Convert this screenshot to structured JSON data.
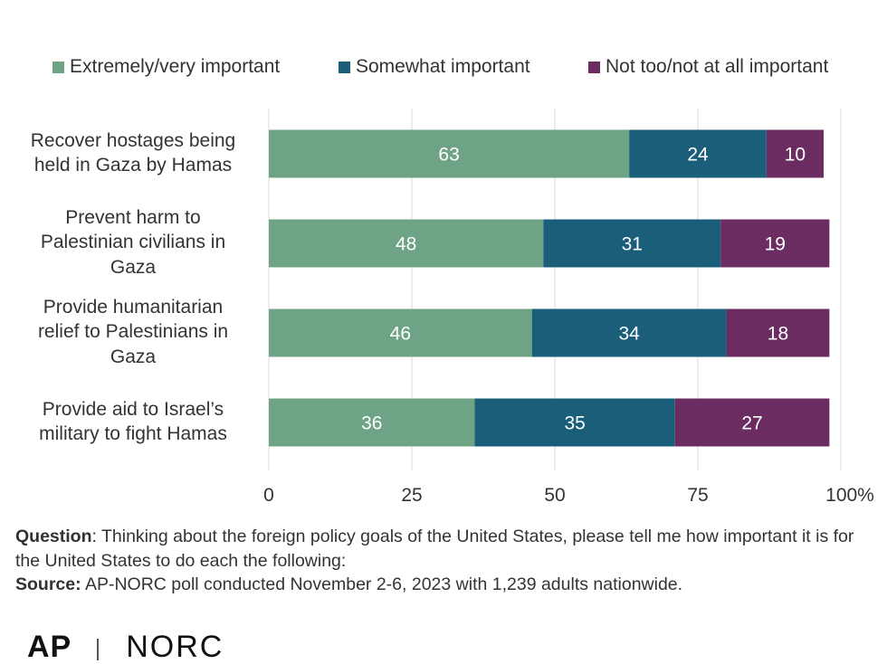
{
  "chart_data": {
    "type": "bar",
    "orientation": "horizontal",
    "stacked": true,
    "categories": [
      [
        "Recover hostages being",
        "held in Gaza by Hamas"
      ],
      [
        "Prevent harm to",
        "Palestinian civilians in",
        "Gaza"
      ],
      [
        "Provide humanitarian",
        "relief to Palestinians in",
        "Gaza"
      ],
      [
        "Provide aid to Israel’s",
        "military to fight Hamas"
      ]
    ],
    "series": [
      {
        "name": "Extremely/very important",
        "color": "#6fa386",
        "values": [
          63,
          48,
          46,
          36
        ]
      },
      {
        "name": "Somewhat important",
        "color": "#1a5e7a",
        "values": [
          24,
          31,
          34,
          35
        ]
      },
      {
        "name": "Not too/not at all important",
        "color": "#6b2c62",
        "values": [
          10,
          19,
          18,
          27
        ]
      }
    ],
    "xlim": [
      0,
      100
    ],
    "xticks": [
      {
        "value": 0,
        "label": "0"
      },
      {
        "value": 25,
        "label": "25"
      },
      {
        "value": 50,
        "label": "50"
      },
      {
        "value": 75,
        "label": "75"
      },
      {
        "value": 100,
        "label": "100%"
      }
    ],
    "grid": true,
    "legend_position": "top",
    "data_label_color": "#ffffff",
    "gridline_color": "#d9d9d9"
  },
  "footer": {
    "question_label": "Question",
    "question_text": ": Thinking about the foreign policy goals of the United States, please tell me how important it is for the United States to do each the following:",
    "source_label": "Source:",
    "source_text": " AP-NORC poll conducted November 2-6, 2023 with 1,239 adults nationwide."
  },
  "logos": {
    "ap": "AP",
    "norc": "NORC"
  }
}
